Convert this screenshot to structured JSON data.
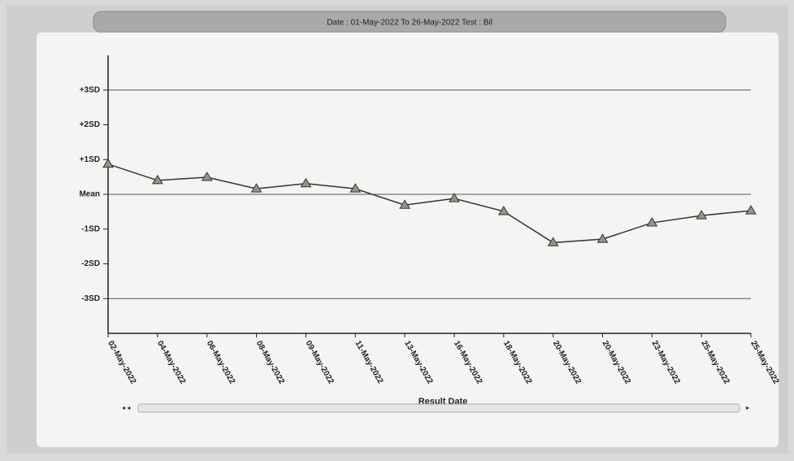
{
  "chart_data": {
    "type": "line",
    "title": "Date : 01-May-2022 To 26-May-2022 Test : Bil",
    "x_label": "Result Date",
    "categories": [
      "02-May-2022",
      "04-May-2022",
      "06-May-2022",
      "08-May-2022",
      "09-May-2022",
      "11-May-2022",
      "13-May-2022",
      "16-May-2022",
      "18-May-2022",
      "20-May-2022",
      "20-May-2022",
      "23-May-2022",
      "25-May-2022",
      "25-May-2022"
    ],
    "series": [
      {
        "color": "#333333",
        "values": [
          0.87,
          0.4,
          0.49,
          0.16,
          0.31,
          0.16,
          -0.31,
          -0.12,
          -0.49,
          -1.39,
          -1.29,
          -0.82,
          -0.61,
          -0.47
        ]
      }
    ],
    "ylim": [
      -4,
      4
    ],
    "yticks": [
      {
        "value": 3,
        "label": "+3SD"
      },
      {
        "value": 2,
        "label": "+2SD"
      },
      {
        "value": 1,
        "label": "+1SD"
      },
      {
        "value": 0,
        "label": "Mean"
      },
      {
        "value": -1,
        "label": "-1SD"
      },
      {
        "value": -2,
        "label": "-2SD"
      },
      {
        "value": -3,
        "label": "-3SD"
      }
    ],
    "reference_lines": [
      3,
      0,
      -3
    ]
  }
}
